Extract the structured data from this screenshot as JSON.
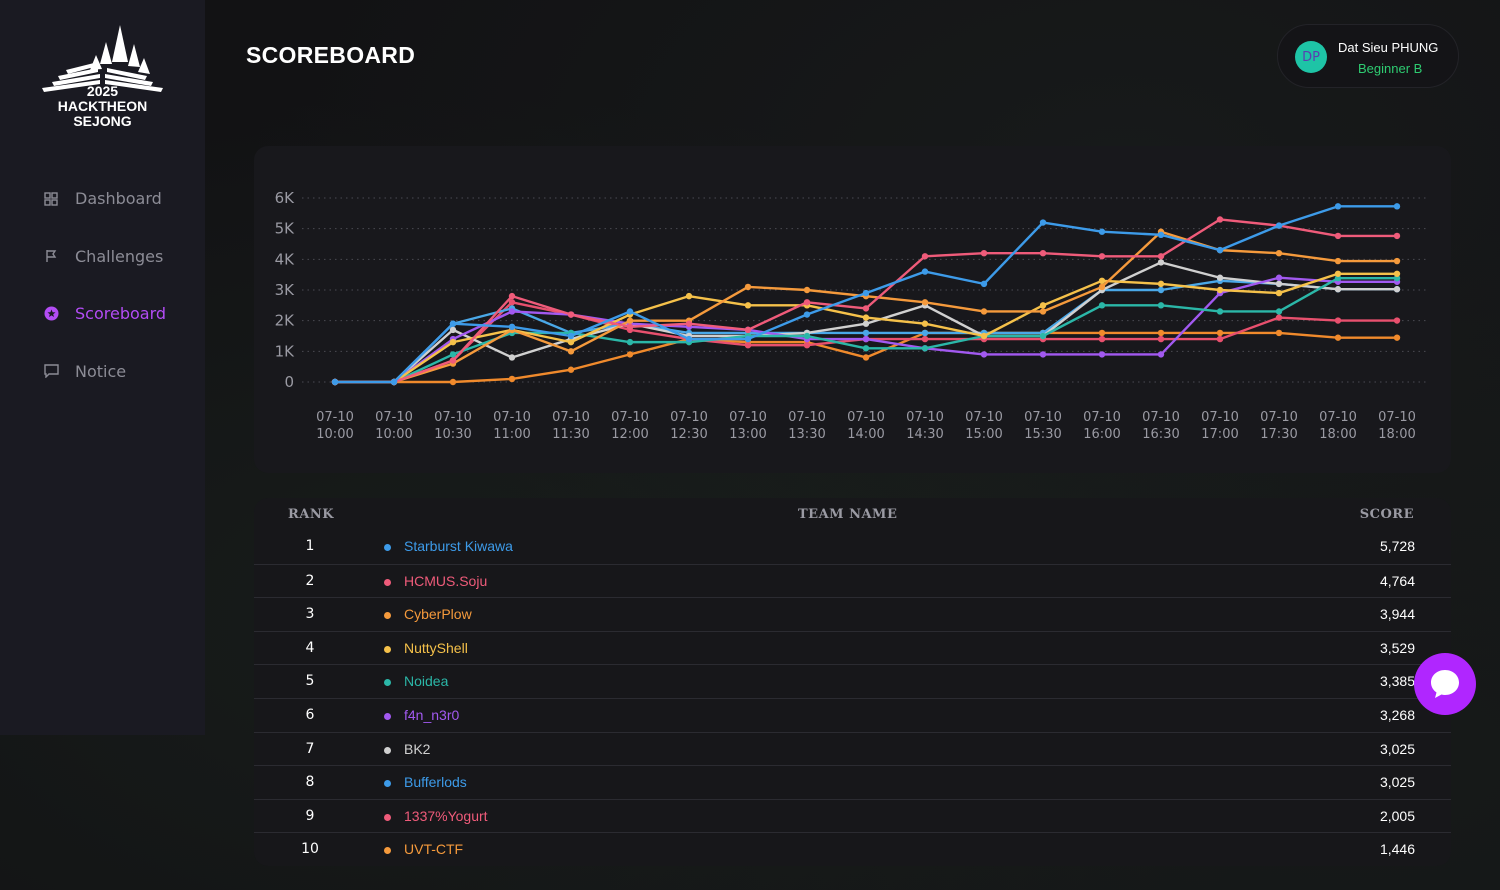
{
  "logo": {
    "year": "2025",
    "line1": "HACKTHEON",
    "line2": "SEJONG"
  },
  "nav": [
    {
      "label": "Dashboard",
      "icon": "dashboard-icon",
      "active": false
    },
    {
      "label": "Challenges",
      "icon": "flag-icon",
      "active": false
    },
    {
      "label": "Scoreboard",
      "icon": "scoreboard-icon",
      "active": true
    },
    {
      "label": "Notice",
      "icon": "notice-icon",
      "active": false
    }
  ],
  "page": {
    "title": "SCOREBOARD"
  },
  "user": {
    "initials": "DP",
    "name": "Dat Sieu PHUNG",
    "level": "Beginner B"
  },
  "colors": {
    "accent": "#b34cf5",
    "success": "#2ecc71"
  },
  "table": {
    "headers": {
      "rank": "RANK",
      "team": "TEAM NAME",
      "score": "SCORE"
    },
    "rows": [
      {
        "rank": "1",
        "team": "Starburst Kiwawa",
        "score": "5,728",
        "color": "#3d9be9"
      },
      {
        "rank": "2",
        "team": "HCMUS.Soju",
        "score": "4,764",
        "color": "#ef5b7a"
      },
      {
        "rank": "3",
        "team": "CyberPlow",
        "score": "3,944",
        "color": "#f59a3c"
      },
      {
        "rank": "4",
        "team": "NuttyShell",
        "score": "3,529",
        "color": "#f5c14a"
      },
      {
        "rank": "5",
        "team": "Noidea",
        "score": "3,385",
        "color": "#2bb7a8"
      },
      {
        "rank": "6",
        "team": "f4n_n3r0",
        "score": "3,268",
        "color": "#a259f0"
      },
      {
        "rank": "7",
        "team": "BK2",
        "score": "3,025",
        "color": "#d0d0d0"
      },
      {
        "rank": "8",
        "team": "Bufferlods",
        "score": "3,025",
        "color": "#3d9be9"
      },
      {
        "rank": "9",
        "team": "1337%Yogurt",
        "score": "2,005",
        "color": "#ef5b7a"
      },
      {
        "rank": "10",
        "team": "UVT-CTF",
        "score": "1,446",
        "color": "#f59a3c"
      }
    ]
  },
  "chart_data": {
    "type": "line",
    "ylim": [
      0,
      6000
    ],
    "y_ticks": [
      {
        "value": 0,
        "label": "0"
      },
      {
        "value": 1000,
        "label": "1K"
      },
      {
        "value": 2000,
        "label": "2K"
      },
      {
        "value": 3000,
        "label": "3K"
      },
      {
        "value": 4000,
        "label": "4K"
      },
      {
        "value": 5000,
        "label": "5K"
      },
      {
        "value": 6000,
        "label": "6K"
      }
    ],
    "x": [
      [
        "07-10",
        "10:00"
      ],
      [
        "07-10",
        "10:00"
      ],
      [
        "07-10",
        "10:30"
      ],
      [
        "07-10",
        "11:00"
      ],
      [
        "07-10",
        "11:30"
      ],
      [
        "07-10",
        "12:00"
      ],
      [
        "07-10",
        "12:30"
      ],
      [
        "07-10",
        "13:00"
      ],
      [
        "07-10",
        "13:30"
      ],
      [
        "07-10",
        "14:00"
      ],
      [
        "07-10",
        "14:30"
      ],
      [
        "07-10",
        "15:00"
      ],
      [
        "07-10",
        "15:30"
      ],
      [
        "07-10",
        "16:00"
      ],
      [
        "07-10",
        "16:30"
      ],
      [
        "07-10",
        "17:00"
      ],
      [
        "07-10",
        "17:30"
      ],
      [
        "07-10",
        "18:00"
      ],
      [
        "07-10",
        "18:00"
      ]
    ],
    "grid": true,
    "legend": "none",
    "series": [
      {
        "color": "#3d9be9",
        "values": [
          0,
          0,
          1900,
          1800,
          1500,
          2300,
          1400,
          1400,
          2200,
          2900,
          3600,
          3200,
          5200,
          4900,
          4800,
          4300,
          5100,
          5728,
          5728
        ]
      },
      {
        "color": "#ef5b7a",
        "values": [
          0,
          0,
          700,
          2800,
          2200,
          1800,
          1900,
          1700,
          2600,
          2400,
          4100,
          4200,
          4200,
          4100,
          4100,
          5300,
          5100,
          4764,
          4764
        ]
      },
      {
        "color": "#f59a3c",
        "values": [
          0,
          0,
          600,
          1700,
          1000,
          2000,
          2000,
          3100,
          3000,
          2800,
          2600,
          2300,
          2300,
          3100,
          4900,
          4300,
          4200,
          3944,
          3944
        ]
      },
      {
        "color": "#f5c14a",
        "values": [
          0,
          0,
          1300,
          1700,
          1300,
          2200,
          2800,
          2500,
          2500,
          2100,
          1900,
          1500,
          2500,
          3300,
          3200,
          3000,
          2900,
          3529,
          3529
        ]
      },
      {
        "color": "#2bb7a8",
        "values": [
          0,
          0,
          900,
          1600,
          1600,
          1300,
          1300,
          1500,
          1500,
          1100,
          1100,
          1500,
          1500,
          2500,
          2500,
          2300,
          2300,
          3385,
          3385
        ]
      },
      {
        "color": "#a259f0",
        "values": [
          0,
          0,
          1400,
          2300,
          2200,
          1900,
          1800,
          1700,
          1400,
          1400,
          1100,
          900,
          900,
          900,
          900,
          2900,
          3400,
          3268,
          3268
        ]
      },
      {
        "color": "#d0d0d0",
        "values": [
          0,
          0,
          1700,
          800,
          1400,
          1900,
          1500,
          1500,
          1600,
          1900,
          2500,
          1500,
          1500,
          3000,
          3900,
          3400,
          3200,
          3025,
          3025
        ]
      },
      {
        "color": "#4aa8e8",
        "values": [
          0,
          0,
          1900,
          2400,
          1600,
          1900,
          1600,
          1600,
          1600,
          1600,
          1600,
          1600,
          1600,
          3000,
          3000,
          3300,
          3200,
          3025,
          3025
        ]
      },
      {
        "color": "#e8506e",
        "values": [
          0,
          0,
          700,
          2600,
          2200,
          1700,
          1400,
          1200,
          1200,
          1400,
          1400,
          1400,
          1400,
          1400,
          1400,
          1400,
          2100,
          2005,
          2005
        ]
      },
      {
        "color": "#f08a2c",
        "values": [
          0,
          0,
          0,
          100,
          400,
          900,
          1400,
          1300,
          1300,
          800,
          1600,
          1600,
          1600,
          1600,
          1600,
          1600,
          1600,
          1446,
          1446
        ]
      }
    ]
  }
}
